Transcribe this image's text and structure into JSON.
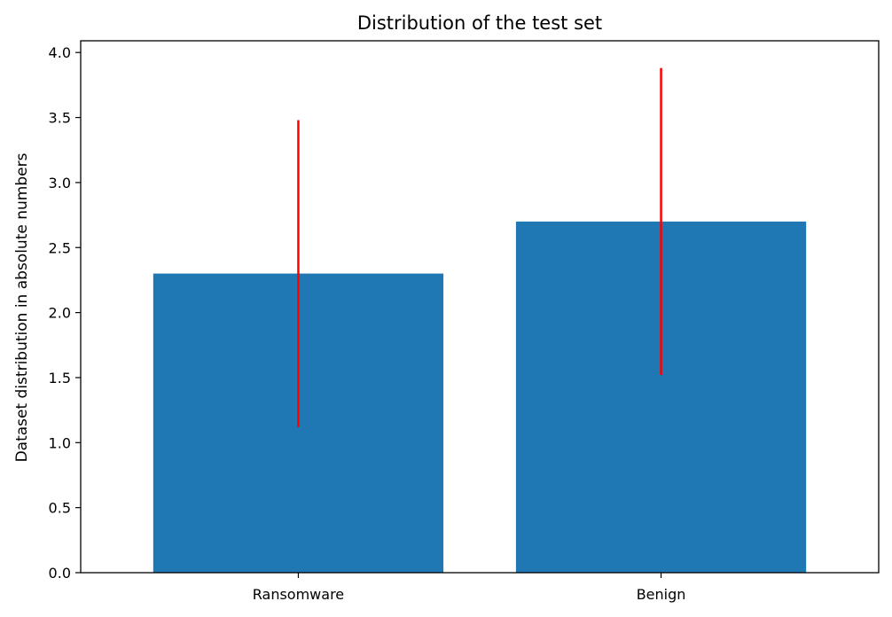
{
  "chart_data": {
    "type": "bar",
    "title": "Distribution of the test set",
    "xlabel": "",
    "ylabel": "Dataset distribution in absolute numbers",
    "categories": [
      "Ransomware",
      "Benign"
    ],
    "values": [
      2.3,
      2.7
    ],
    "error": [
      1.18,
      1.18
    ],
    "ylim": [
      0,
      4.09
    ],
    "yticks": [
      0.0,
      0.5,
      1.0,
      1.5,
      2.0,
      2.5,
      3.0,
      3.5,
      4.0
    ],
    "ytick_labels": [
      "0.0",
      "0.5",
      "1.0",
      "1.5",
      "2.0",
      "2.5",
      "3.0",
      "3.5",
      "4.0"
    ],
    "grid": false,
    "colors": {
      "bar": "#1f77b4",
      "error": "#ff0000"
    }
  }
}
